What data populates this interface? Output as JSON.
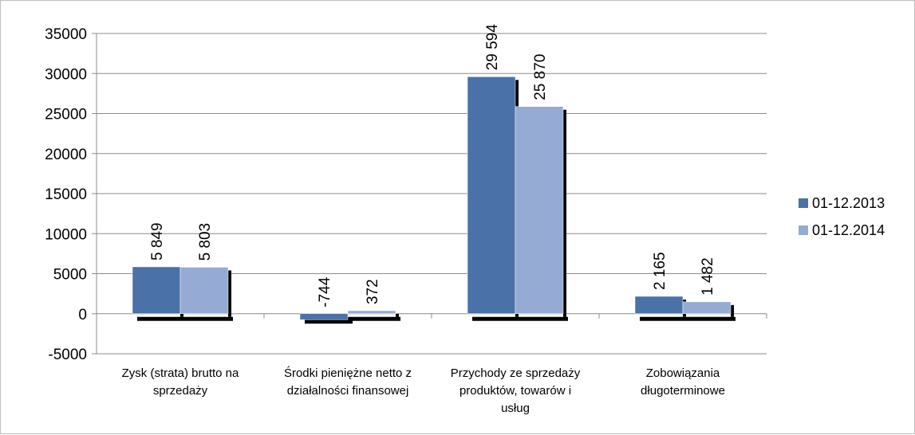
{
  "chart_data": {
    "type": "bar",
    "title": "",
    "xlabel": "",
    "ylabel": "",
    "ylim": [
      -5000,
      35000
    ],
    "yticks": [
      35000,
      30000,
      25000,
      20000,
      15000,
      10000,
      5000,
      0,
      -5000
    ],
    "ytick_labels": [
      "35000",
      "30000",
      "25000",
      "20000",
      "15000",
      "10000",
      "5000",
      "0",
      "-5000"
    ],
    "grid": true,
    "legend_position": "right",
    "categories": [
      [
        "Zysk (strata) brutto na",
        "sprzedaży"
      ],
      [
        "Środki pieniężne netto z",
        "działalności finansowej"
      ],
      [
        "Przychody ze sprzedaży",
        "produktów, towarów i",
        "usług"
      ],
      [
        "Zobowiązania",
        "długoterminowe"
      ]
    ],
    "series": [
      {
        "name": "01-12.2013",
        "color": "#4a72a8",
        "values": [
          5849,
          -744,
          29594,
          2165
        ],
        "labels": [
          "5 849",
          "-744",
          "29 594",
          "2 165"
        ]
      },
      {
        "name": "01-12.2014",
        "color": "#95abd3",
        "values": [
          5803,
          372,
          25870,
          1482
        ],
        "labels": [
          "5 803",
          "372",
          "25 870",
          "1 482"
        ]
      }
    ]
  }
}
